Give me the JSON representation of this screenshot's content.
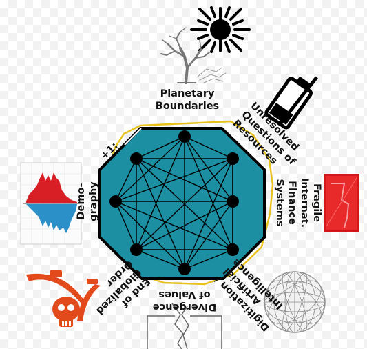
{
  "diagram": {
    "center_color": "#1d8fa3",
    "outline_color": "#e8c21a",
    "labels": {
      "planetary_1": "Planetary",
      "planetary_2": "Boundaries",
      "resources_1": "Unresolved",
      "resources_2": "Questions of",
      "resources_3": "Resources",
      "finance_1": "Fragile",
      "finance_2": "Internat.",
      "finance_3": "Finance",
      "finance_4": "Systems",
      "digital_1": "Digitization /",
      "digital_2": "Artificial",
      "digital_3": "Intelligence",
      "values_1": "Divergence",
      "values_2": "of Values",
      "order_1": "End of",
      "order_2": "Globalized",
      "order_3": "Order",
      "demo_1": "Demo-",
      "demo_2": "graphy",
      "plus_one": "+1:"
    },
    "icons": [
      "sun-icon",
      "dead-tree-icon",
      "empty-battery-icon",
      "falling-chart-icon",
      "population-pyramid-icon",
      "pirate-skull-icon",
      "wire-globe-icon",
      "broken-wall-icon"
    ]
  }
}
